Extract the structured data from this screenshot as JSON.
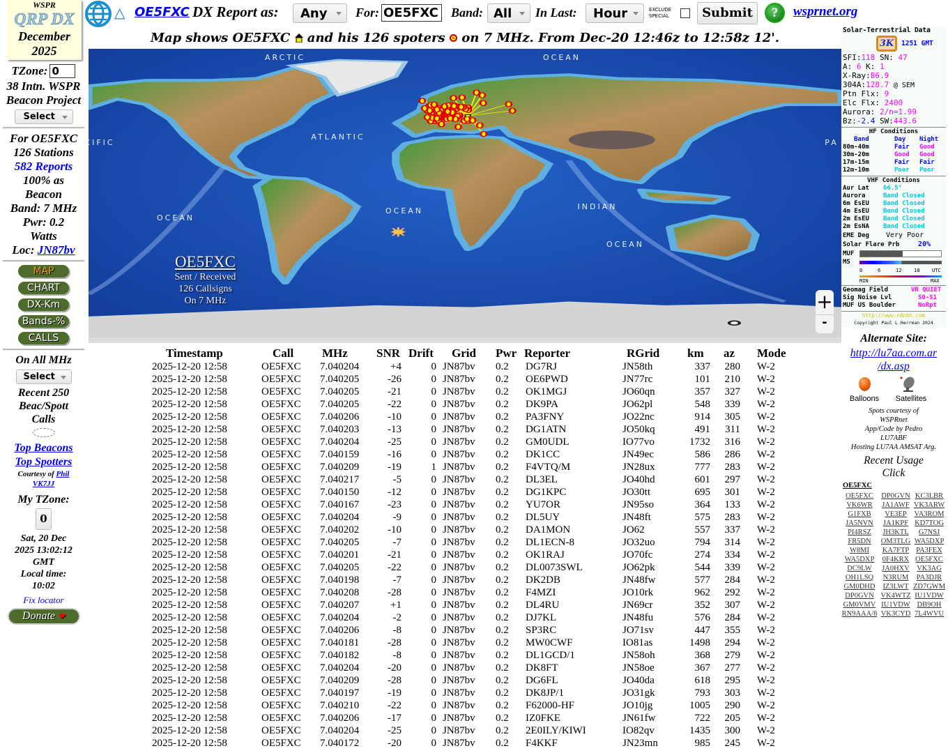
{
  "logo": {
    "top": "WSPR",
    "main": "QRP DX",
    "month": "December",
    "year": "2025"
  },
  "header": {
    "callsign_link": "OE5FXC",
    "report_label": "DX Report as:",
    "report_value": "Any",
    "for_label": "For:",
    "for_value": "OE5FXC",
    "band_label": "Band:",
    "band_value": "All",
    "last_label": "In Last:",
    "last_value": "Hour",
    "exclude_label_1": "EXCLUDE",
    "exclude_label_2": "SPECIAL",
    "submit": "Submit",
    "help": "?",
    "wsprnet_link": "wsprnet.org"
  },
  "subtitle": {
    "part1": "Map shows OE5FXC",
    "part2": "and his 126 spoters",
    "part3": "on 7 MHz. From Dec-20 12:46z to 12:58z 12'."
  },
  "sidebar": {
    "tzone_label": "TZone:",
    "tzone_value": "0",
    "project_1": "38 Intn. WSPR",
    "project_2": "Beacon Project",
    "select_1": "Select",
    "for_line": "For OE5FXC",
    "stations": "126 Stations",
    "reports": "582 Reports",
    "beacon_1": "100% as",
    "beacon_2": "Beacon",
    "band": "Band: 7 MHz",
    "pwr": "Pwr: 0.2",
    "watts": "Watts",
    "loc_label": "Loc:",
    "loc_value": "JN87bv",
    "buttons": [
      "MAP",
      "CHART",
      "DX-Km",
      "Bands-%",
      "CALLS"
    ],
    "all_mhz": "On All MHz",
    "select_2": "Select",
    "recent_1": "Recent 250",
    "recent_2": "Beac/Spott",
    "recent_3": "Calls",
    "top_beacons": "Top Beacons",
    "top_spotters": "Top Spotters",
    "courtesy": "Courtesy of",
    "phil": "Phil",
    "vk7jj": "VK7JJ",
    "my_tzone": "My TZone:",
    "my_tzone_value": "0",
    "date_1": "Sat, 20 Dec",
    "date_2": "2025 13:02:12",
    "date_3": "GMT",
    "local_label": "Local time:",
    "local_time": "10:02",
    "fix_locator": "Fix locator",
    "donate": "Donate"
  },
  "map": {
    "labels": [
      "ARCTIC",
      "OCEAN",
      "ATLANTIC",
      "OCEAN",
      "OCEAN",
      "INDIAN",
      "OCEAN",
      "CIFIC",
      "PA"
    ],
    "overlay_call": "OE5FXC",
    "overlay_1": "Sent / Received",
    "overlay_2": "126 Callsigns",
    "overlay_3": "On 7 MHz",
    "zoom_in": "+",
    "zoom_out": "-"
  },
  "table": {
    "headers": [
      "Timestamp",
      "Call",
      "MHz",
      "SNR",
      "Drift",
      "Grid",
      "Pwr",
      "Reporter",
      "RGrid",
      "km",
      "az",
      "Mode"
    ],
    "rows": [
      [
        "2025-12-20 12:58",
        "OE5FXC",
        "7.040204",
        "+4",
        "0",
        "JN87bv",
        "0.2",
        "DG7RJ",
        "JN58th",
        "337",
        "280",
        "W-2"
      ],
      [
        "2025-12-20 12:58",
        "OE5FXC",
        "7.040205",
        "-26",
        "0",
        "JN87bv",
        "0.2",
        "OE6PWD",
        "JN77rc",
        "101",
        "210",
        "W-2"
      ],
      [
        "2025-12-20 12:58",
        "OE5FXC",
        "7.040205",
        "-21",
        "0",
        "JN87bv",
        "0.2",
        "OK1MGJ",
        "JO60qn",
        "357",
        "327",
        "W-2"
      ],
      [
        "2025-12-20 12:58",
        "OE5FXC",
        "7.040205",
        "-22",
        "0",
        "JN87bv",
        "0.2",
        "DK9PA",
        "JO62pl",
        "548",
        "339",
        "W-2"
      ],
      [
        "2025-12-20 12:58",
        "OE5FXC",
        "7.040206",
        "-10",
        "0",
        "JN87bv",
        "0.2",
        "PA3FNY",
        "JO22nc",
        "914",
        "305",
        "W-2"
      ],
      [
        "2025-12-20 12:58",
        "OE5FXC",
        "7.040203",
        "-13",
        "0",
        "JN87bv",
        "0.2",
        "DG1ATN",
        "JO50kq",
        "491",
        "311",
        "W-2"
      ],
      [
        "2025-12-20 12:58",
        "OE5FXC",
        "7.040204",
        "-25",
        "0",
        "JN87bv",
        "0.2",
        "GM0UDL",
        "IO77vo",
        "1732",
        "316",
        "W-2"
      ],
      [
        "2025-12-20 12:58",
        "OE5FXC",
        "7.040159",
        "-16",
        "0",
        "JN87bv",
        "0.2",
        "DK1CC",
        "JN49ec",
        "586",
        "286",
        "W-2"
      ],
      [
        "2025-12-20 12:58",
        "OE5FXC",
        "7.040209",
        "-19",
        "1",
        "JN87bv",
        "0.2",
        "F4VTQ/M",
        "JN28ux",
        "777",
        "283",
        "W-2"
      ],
      [
        "2025-12-20 12:58",
        "OE5FXC",
        "7.040217",
        "-5",
        "0",
        "JN87bv",
        "0.2",
        "DL3EL",
        "JO40hd",
        "601",
        "297",
        "W-2"
      ],
      [
        "2025-12-20 12:58",
        "OE5FXC",
        "7.040150",
        "-12",
        "0",
        "JN87bv",
        "0.2",
        "DG1KPC",
        "JO30tt",
        "695",
        "301",
        "W-2"
      ],
      [
        "2025-12-20 12:58",
        "OE5FXC",
        "7.040167",
        "-23",
        "0",
        "JN87bv",
        "0.2",
        "YU7OR",
        "JN95so",
        "364",
        "133",
        "W-2"
      ],
      [
        "2025-12-20 12:58",
        "OE5FXC",
        "7.040204",
        "-9",
        "0",
        "JN87bv",
        "0.2",
        "DL5UY",
        "JN48ft",
        "575",
        "283",
        "W-2"
      ],
      [
        "2025-12-20 12:58",
        "OE5FXC",
        "7.040202",
        "-10",
        "0",
        "JN87bv",
        "0.2",
        "DA1MON",
        "JO62",
        "557",
        "337",
        "W-2"
      ],
      [
        "2025-12-20 12:58",
        "OE5FXC",
        "7.040205",
        "-7",
        "0",
        "JN87bv",
        "0.2",
        "DL1ECN-8",
        "JO32uo",
        "794",
        "314",
        "W-2"
      ],
      [
        "2025-12-20 12:58",
        "OE5FXC",
        "7.040201",
        "-21",
        "0",
        "JN87bv",
        "0.2",
        "OK1RAJ",
        "JO70fc",
        "274",
        "334",
        "W-2"
      ],
      [
        "2025-12-20 12:58",
        "OE5FXC",
        "7.040205",
        "-22",
        "0",
        "JN87bv",
        "0.2",
        "DL0073SWL",
        "JO62pk",
        "544",
        "339",
        "W-2"
      ],
      [
        "2025-12-20 12:58",
        "OE5FXC",
        "7.040198",
        "-7",
        "0",
        "JN87bv",
        "0.2",
        "DK2DB",
        "JN48fw",
        "577",
        "284",
        "W-2"
      ],
      [
        "2025-12-20 12:58",
        "OE5FXC",
        "7.040208",
        "-28",
        "0",
        "JN87bv",
        "0.2",
        "F4MZI",
        "JO10rk",
        "962",
        "292",
        "W-2"
      ],
      [
        "2025-12-20 12:58",
        "OE5FXC",
        "7.040207",
        "+1",
        "0",
        "JN87bv",
        "0.2",
        "DL4RU",
        "JN69cr",
        "352",
        "307",
        "W-2"
      ],
      [
        "2025-12-20 12:58",
        "OE5FXC",
        "7.040204",
        "-2",
        "0",
        "JN87bv",
        "0.2",
        "DJ7KL",
        "JN48fu",
        "576",
        "284",
        "W-2"
      ],
      [
        "2025-12-20 12:58",
        "OE5FXC",
        "7.040206",
        "-8",
        "0",
        "JN87bv",
        "0.2",
        "SP3RC",
        "JO71sv",
        "447",
        "355",
        "W-2"
      ],
      [
        "2025-12-20 12:58",
        "OE5FXC",
        "7.040181",
        "-28",
        "0",
        "JN87bv",
        "0.2",
        "MW0CWF",
        "IO81as",
        "1498",
        "294",
        "W-2"
      ],
      [
        "2025-12-20 12:58",
        "OE5FXC",
        "7.040182",
        "-8",
        "0",
        "JN87bv",
        "0.2",
        "DL1GCD/1",
        "JN58oh",
        "368",
        "279",
        "W-2"
      ],
      [
        "2025-12-20 12:58",
        "OE5FXC",
        "7.040204",
        "-20",
        "0",
        "JN87bv",
        "0.2",
        "DK8FT",
        "JN58oe",
        "367",
        "277",
        "W-2"
      ],
      [
        "2025-12-20 12:58",
        "OE5FXC",
        "7.040209",
        "-28",
        "0",
        "JN87bv",
        "0.2",
        "DG6FL",
        "JO40da",
        "618",
        "295",
        "W-2"
      ],
      [
        "2025-12-20 12:58",
        "OE5FXC",
        "7.040197",
        "-19",
        "0",
        "JN87bv",
        "0.2",
        "DK8JP/1",
        "JO31gk",
        "793",
        "303",
        "W-2"
      ],
      [
        "2025-12-20 12:58",
        "OE5FXC",
        "7.040210",
        "-22",
        "0",
        "JN87bv",
        "0.2",
        "F62000-HF",
        "JO10jg",
        "1005",
        "290",
        "W-2"
      ],
      [
        "2025-12-20 12:58",
        "OE5FXC",
        "7.040206",
        "-17",
        "0",
        "JN87bv",
        "0.2",
        "IZ0FKE",
        "JN61fw",
        "722",
        "205",
        "W-2"
      ],
      [
        "2025-12-20 12:58",
        "OE5FXC",
        "7.040204",
        "-25",
        "0",
        "JN87bv",
        "0.2",
        "2E0ILY/KIWI",
        "IO82qv",
        "1435",
        "300",
        "W-2"
      ],
      [
        "2025-12-20 12:58",
        "OE5FXC",
        "7.040172",
        "-20",
        "0",
        "JN87bv",
        "0.2",
        "F4KKF",
        "JN23mn",
        "985",
        "245",
        "W-2"
      ]
    ]
  },
  "solar": {
    "title": "Solar-Terrestrial Data",
    "badge": "3K",
    "time": "1251 GMT",
    "sfi_label": "SFI:",
    "sfi": "118",
    "sn_label": "SN:",
    "sn": "47",
    "a_label": "A:",
    "a": "6",
    "k_label": "K:",
    "k": "1",
    "xray_label": "X-Ray:",
    "xray": "B6.9",
    "a304_label": "304A:",
    "a304": "128.7",
    "a304_src": "@ SEM",
    "ptn_label": "Ptn Flx:",
    "ptn": "9",
    "elc_label": "Elc Flx:",
    "elc": "2400",
    "aurora_label": "Aurora:",
    "aurora": "2/n=1.99",
    "bz_label": "Bz:",
    "bz": "-2.4",
    "sw_label": "SW:",
    "sw": "443.6",
    "hf_title": "HF Conditions",
    "hf_head": [
      "Band",
      "Day",
      "Night"
    ],
    "hf_rows": [
      [
        "80m-40m",
        "Fair",
        "Good"
      ],
      [
        "30m-20m",
        "Good",
        "Good"
      ],
      [
        "17m-15m",
        "Fair",
        "Fair"
      ],
      [
        "12m-10m",
        "Poor",
        "Poor"
      ]
    ],
    "vhf_title": "VHF Conditions",
    "vhf_rows": [
      [
        "Aur Lat",
        "66.5°"
      ],
      [
        "Aurora",
        "Band Closed"
      ],
      [
        "6m EsEU",
        "Band Closed"
      ],
      [
        "4m EsEU",
        "Band Closed"
      ],
      [
        "2m EsEU",
        "Band Closed"
      ],
      [
        "2m EsNA",
        "Band Closed"
      ]
    ],
    "eme_label": "EME Deg",
    "eme": "Very Poor",
    "flare_label": "Solar Flare Prb",
    "flare": "20%",
    "muf_label": "MUF",
    "ms_label": "MS",
    "scale": [
      "0",
      "6",
      "12",
      "18",
      "UTC"
    ],
    "scale_min": "MIN",
    "scale_max": "MAX",
    "muf_fill": 0.53,
    "geomag_label": "Geomag Field",
    "geomag": "VR QUIET",
    "noise_label": "Sig Noise Lvl",
    "noise": "S0-S1",
    "boulder_label": "MUF US Boulder",
    "boulder": "NoRpt",
    "url": "http://www.n0nbh.com",
    "copyright": "Copyright Paul L Herrman 2024"
  },
  "right": {
    "alt_title": "Alternate Site:",
    "alt_url_1": "http://lu7aa.com.ar",
    "alt_url_2": "/dx.asp",
    "balloons": "Balloons",
    "satellites": "Satellites",
    "credit_1": "Spots courtesy of",
    "credit_2": "WSPRnet",
    "credit_3": "App/Code by Pedro",
    "credit_4": "LU7ABF",
    "credit_5": "Hosting LU7AA AMSAT Arg.",
    "usage_1": "Recent Usage",
    "usage_2": "Click",
    "usage_head": "OE5FXC",
    "usage_rows": [
      [
        "OE5FXC",
        "DP0GVN",
        "KC3LBR"
      ],
      [
        "VK6WR",
        "JA1AWF",
        "VK3ARW"
      ],
      [
        "G1FXB",
        "VE3EP",
        "VA3ROM"
      ],
      [
        "JA5NVN",
        "JA1KPF",
        "KD7TOG"
      ],
      [
        "PI4RSZ",
        "JH3KTL",
        "G7NSJ"
      ],
      [
        "FR5DN",
        "OM3TLG",
        "WA5DXP"
      ],
      [
        "W8MI",
        "KA7FTP",
        "PA3FEX"
      ],
      [
        "WA5DXP",
        "0F4KRX",
        "OE5FXC"
      ],
      [
        "DC9LW",
        "JA0HXV",
        "VK3AG"
      ],
      [
        "OH1LSQ",
        "N3RUM",
        "PA3DJR"
      ],
      [
        "GM0DHD",
        "IZ3LWT",
        "ZD7GWM"
      ],
      [
        "DP0GVN",
        "VK4WTZ",
        "IU1VDW"
      ],
      [
        "GM0VMV",
        "IU1VDW",
        "DB9OH"
      ],
      [
        "RN9AAA/8",
        "VK3CYD",
        "7L4WVU"
      ]
    ]
  },
  "colors": {
    "button_green": "#4d6b2b",
    "map_ocean": "#1d4fb5",
    "spot_red": "#e00000",
    "path_yellow": "#f0f000",
    "link_blue": "#0000ee",
    "accent_magenta": "#ff00ff"
  }
}
